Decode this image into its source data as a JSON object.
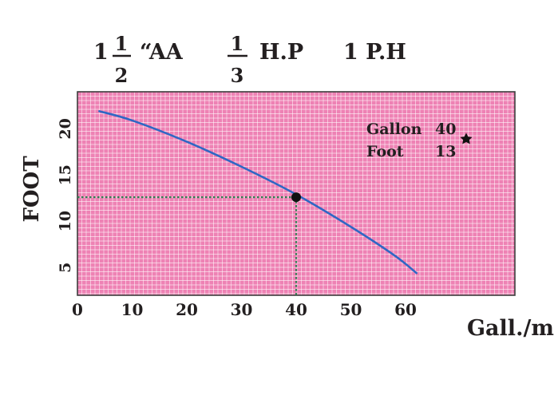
{
  "header": {
    "size_whole": "1",
    "size_num": "1",
    "size_den": "2",
    "size_suffix": "“AA",
    "hp_num": "1",
    "hp_den": "3",
    "hp_suffix": "H.P",
    "phase": "1 P.H"
  },
  "chart_data": {
    "type": "line",
    "title": "",
    "xlabel": "Gall./m",
    "ylabel": "FOOT",
    "xlim": [
      0,
      80
    ],
    "ylim": [
      2,
      24
    ],
    "x_ticks": [
      "0",
      "10",
      "20",
      "30",
      "40",
      "50",
      "60"
    ],
    "y_ticks": [
      "5",
      "10",
      "15",
      "20"
    ],
    "grid": true,
    "series": [
      {
        "x": [
          4,
          10,
          20,
          30,
          40,
          50,
          58,
          62
        ],
        "y": [
          21.9,
          20.9,
          18.6,
          15.9,
          12.9,
          9.4,
          6.3,
          4.4
        ]
      }
    ],
    "operating_point": {
      "x": 40,
      "y": 12.6
    },
    "annotation": {
      "rows": [
        {
          "label": "Gallon",
          "value": "40"
        },
        {
          "label": "Foot",
          "value": "13"
        }
      ],
      "position": "top-right"
    },
    "colors": {
      "background": "#ee82b4",
      "grid_line": "#ffffff",
      "curve": "#2f67c4",
      "reference_line": "#2e7d4f",
      "point": "#111111",
      "frame": "#3d3d3d"
    }
  }
}
